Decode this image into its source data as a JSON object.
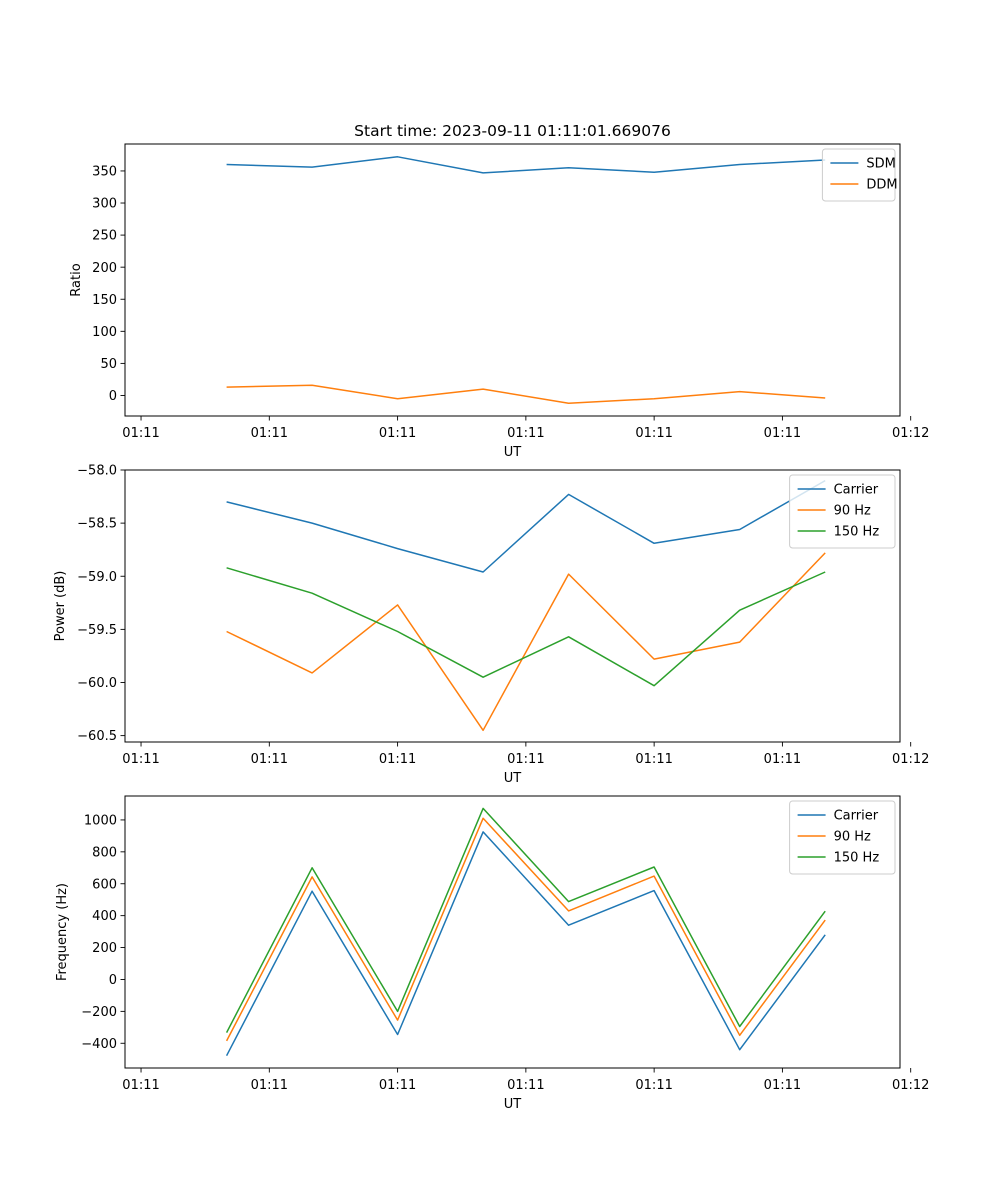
{
  "chart_data": [
    {
      "type": "line",
      "title": "Start time: 2023-09-11 01:11:01.669076",
      "xlabel": "UT",
      "ylabel": "Ratio",
      "x_index": [
        1,
        2,
        3,
        4,
        5,
        6,
        7,
        8
      ],
      "xlim": [
        -0.1875,
        8.875
      ],
      "x_ticks": [
        0,
        1.5,
        3,
        4.5,
        6,
        7.5,
        9
      ],
      "x_tick_labels": [
        "01:11",
        "01:11",
        "01:11",
        "01:11",
        "01:11",
        "01:11",
        "01:12"
      ],
      "ylim": [
        -32,
        392
      ],
      "y_ticks": [
        0,
        50,
        100,
        150,
        200,
        250,
        300,
        350
      ],
      "y_tick_labels": [
        "0",
        "50",
        "100",
        "150",
        "200",
        "250",
        "300",
        "350"
      ],
      "legend_position": "top-right",
      "series": [
        {
          "name": "SDM",
          "color": "#1f77b4",
          "values": [
            360,
            356,
            372,
            347,
            355,
            348,
            360,
            367
          ]
        },
        {
          "name": "DDM",
          "color": "#ff7f0e",
          "values": [
            13,
            16,
            -5,
            10,
            -12,
            -5,
            6,
            -4
          ]
        }
      ]
    },
    {
      "type": "line",
      "title": "",
      "xlabel": "UT",
      "ylabel": "Power (dB)",
      "x_index": [
        1,
        2,
        3,
        4,
        5,
        6,
        7,
        8
      ],
      "xlim": [
        -0.1875,
        8.875
      ],
      "x_ticks": [
        0,
        1.5,
        3,
        4.5,
        6,
        7.5,
        9
      ],
      "x_tick_labels": [
        "01:11",
        "01:11",
        "01:11",
        "01:11",
        "01:11",
        "01:11",
        "01:12"
      ],
      "ylim": [
        -60.56,
        -58.0
      ],
      "y_ticks": [
        -58.0,
        -58.5,
        -59.0,
        -59.5,
        -60.0,
        -60.5
      ],
      "y_tick_labels": [
        "−58.0",
        "−58.5",
        "−59.0",
        "−59.5",
        "−60.0",
        "−60.5"
      ],
      "legend_position": "top-right",
      "series": [
        {
          "name": "Carrier",
          "color": "#1f77b4",
          "values": [
            -58.3,
            -58.5,
            -58.74,
            -58.96,
            -58.23,
            -58.69,
            -58.56,
            -58.1
          ]
        },
        {
          "name": "90 Hz",
          "color": "#ff7f0e",
          "values": [
            -59.52,
            -59.91,
            -59.27,
            -60.45,
            -58.98,
            -59.78,
            -59.62,
            -58.78
          ]
        },
        {
          "name": "150 Hz",
          "color": "#2ca02c",
          "values": [
            -58.92,
            -59.16,
            -59.52,
            -59.95,
            -59.57,
            -60.03,
            -59.32,
            -58.96
          ]
        }
      ]
    },
    {
      "type": "line",
      "title": "",
      "xlabel": "UT",
      "ylabel": "Frequency (Hz)",
      "x_index": [
        1,
        2,
        3,
        4,
        5,
        6,
        7,
        8
      ],
      "xlim": [
        -0.1875,
        8.875
      ],
      "x_ticks": [
        0,
        1.5,
        3,
        4.5,
        6,
        7.5,
        9
      ],
      "x_tick_labels": [
        "01:11",
        "01:11",
        "01:11",
        "01:11",
        "01:11",
        "01:11",
        "01:12"
      ],
      "ylim": [
        -555,
        1150
      ],
      "y_ticks": [
        1000,
        800,
        600,
        400,
        200,
        0,
        -200,
        -400
      ],
      "y_tick_labels": [
        "1000",
        "800",
        "600",
        "400",
        "200",
        "0",
        "−200",
        "−400"
      ],
      "legend_position": "top-right",
      "series": [
        {
          "name": "Carrier",
          "color": "#1f77b4",
          "values": [
            -478,
            553,
            -345,
            925,
            340,
            557,
            -440,
            280
          ]
        },
        {
          "name": "90 Hz",
          "color": "#ff7f0e",
          "values": [
            -385,
            643,
            -255,
            1010,
            430,
            648,
            -350,
            372
          ]
        },
        {
          "name": "150 Hz",
          "color": "#2ca02c",
          "values": [
            -333,
            700,
            -200,
            1072,
            488,
            705,
            -295,
            428
          ]
        }
      ]
    }
  ]
}
